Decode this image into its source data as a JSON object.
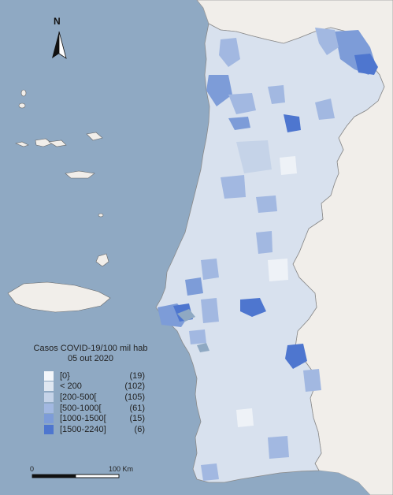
{
  "north_label": "N",
  "legend": {
    "title": "Casos COVID-19/100  mil hab",
    "subtitle": "05 out 2020",
    "classes": [
      {
        "range": "[0}",
        "count": "(19)",
        "color": "#f3f6fa"
      },
      {
        "range": "< 200",
        "count": "(102)",
        "color": "#dfe7f1"
      },
      {
        "range": "[200-500[",
        "count": "(105)",
        "color": "#c5d3e8"
      },
      {
        "range": "[500-1000[",
        "count": "(61)",
        "color": "#a2b8e1"
      },
      {
        "range": "[1000-1500[",
        "count": "(15)",
        "color": "#7d9cd8"
      },
      {
        "range": "[1500-2240]",
        "count": "(6)",
        "color": "#4e76cf"
      }
    ]
  },
  "scale": {
    "start_label": "0",
    "end_label": "100 Km"
  },
  "colors": {
    "sea": "#8fa9c3",
    "land_outside": "#f1eeea",
    "border": "#8a8a8a"
  }
}
